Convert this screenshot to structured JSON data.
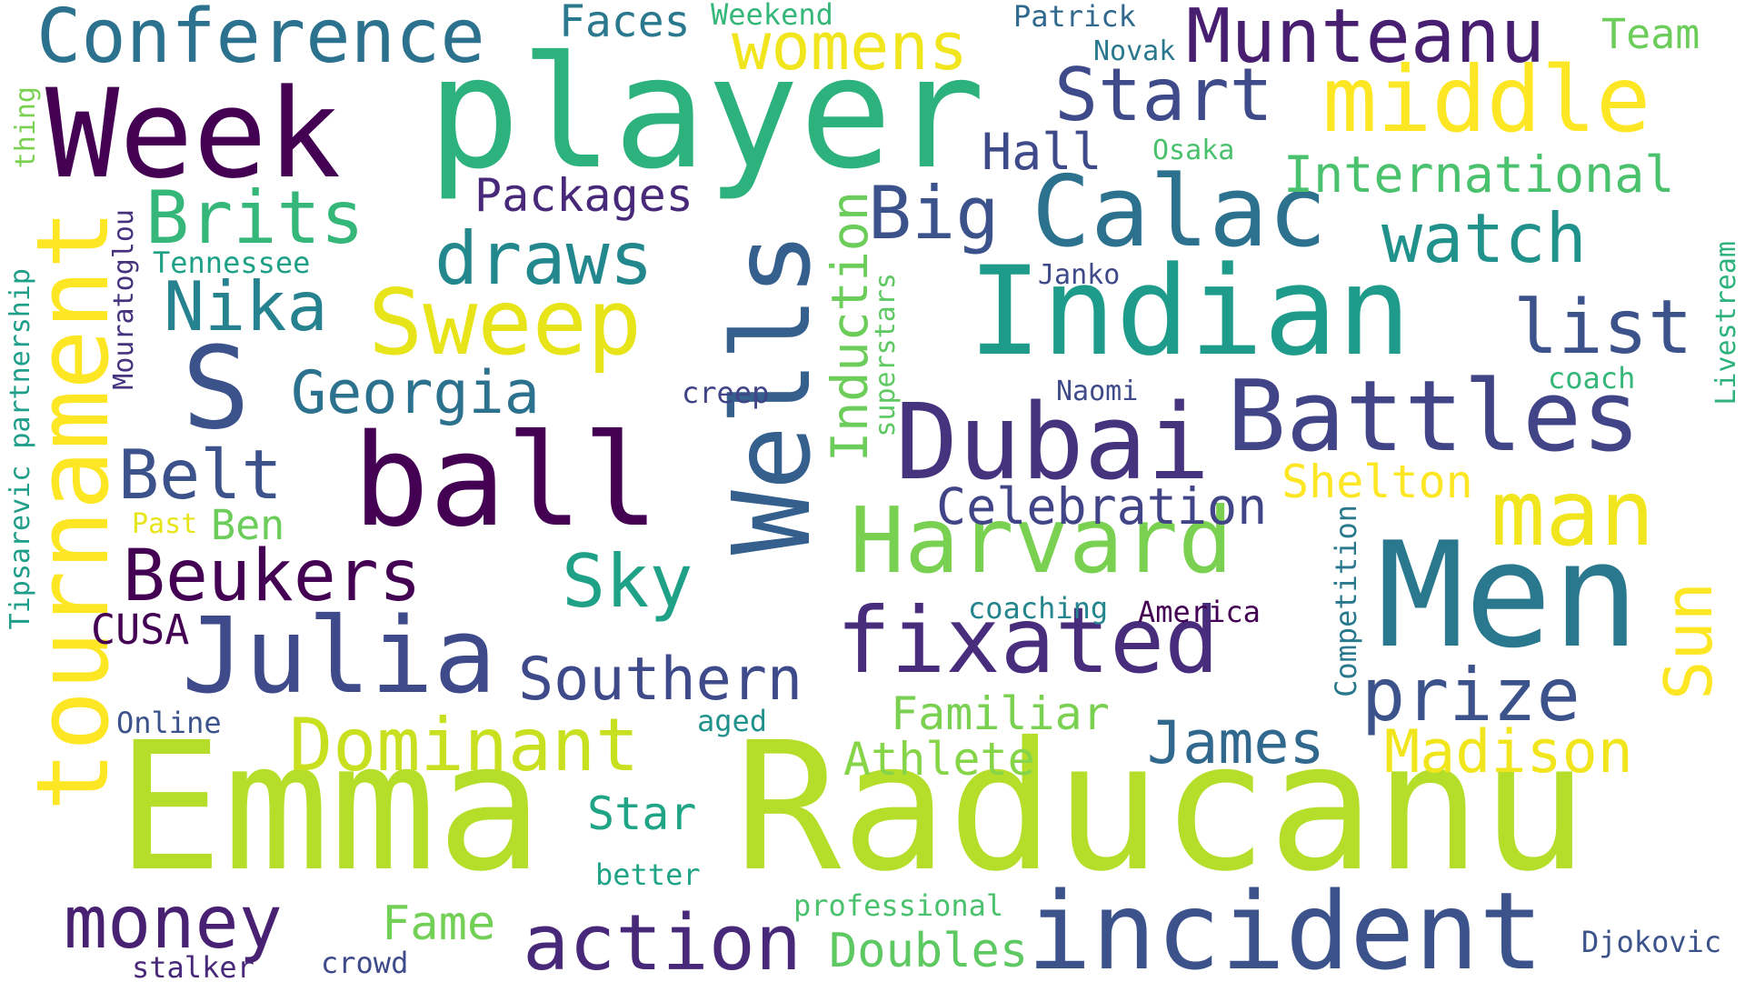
{
  "words": {
    "emma": {
      "text": "Emma",
      "color": "#b5de2b"
    },
    "raducanu": {
      "text": "Raducanu",
      "color": "#b5de2b"
    },
    "player": {
      "text": "player",
      "color": "#2db27d"
    },
    "week": {
      "text": "Week",
      "color": "#440154"
    },
    "ball": {
      "text": "ball",
      "color": "#440154"
    },
    "indian": {
      "text": "Indian",
      "color": "#1e9b8a"
    },
    "men": {
      "text": "Men",
      "color": "#2a788e"
    },
    "wells": {
      "text": "Wells",
      "color": "#355f8d"
    },
    "incident": {
      "text": "incident",
      "color": "#3b528b"
    },
    "calac": {
      "text": "Calac",
      "color": "#2c728e"
    },
    "battles": {
      "text": "Battles",
      "color": "#414487"
    },
    "dubai": {
      "text": "Dubai",
      "color": "#46337e"
    },
    "s": {
      "text": "S",
      "color": "#3b528b"
    },
    "julia": {
      "text": "Julia",
      "color": "#3e4a89"
    },
    "tournament": {
      "text": "tournament",
      "color": "#fde725"
    },
    "harvard": {
      "text": "Harvard",
      "color": "#7ad151"
    },
    "fixated": {
      "text": "fixated",
      "color": "#472d7b"
    },
    "middle": {
      "text": "middle",
      "color": "#fde725"
    },
    "man": {
      "text": "man",
      "color": "#f1e51d"
    },
    "sweep": {
      "text": "Sweep",
      "color": "#e7e419"
    },
    "action": {
      "text": "action",
      "color": "#482878"
    },
    "conference": {
      "text": "Conference",
      "color": "#2c728e"
    },
    "money": {
      "text": "money",
      "color": "#482173"
    },
    "munteanu": {
      "text": "Munteanu",
      "color": "#481f70"
    },
    "dominant": {
      "text": "Dominant",
      "color": "#c8e020"
    },
    "brits": {
      "text": "Brits",
      "color": "#35b779"
    },
    "draws": {
      "text": "draws",
      "color": "#23888e"
    },
    "beukers": {
      "text": "Beukers",
      "color": "#440154"
    },
    "prize": {
      "text": "prize",
      "color": "#3b528b"
    },
    "sun": {
      "text": "Sun",
      "color": "#fde725"
    },
    "big": {
      "text": "Big",
      "color": "#3b528b"
    },
    "watch": {
      "text": "watch",
      "color": "#21918c"
    },
    "start": {
      "text": "Start",
      "color": "#3e4a89"
    },
    "list": {
      "text": "list",
      "color": "#3b528b"
    },
    "womens": {
      "text": "womens",
      "color": "#f1e51d"
    },
    "nika": {
      "text": "Nika",
      "color": "#26828e"
    },
    "belt": {
      "text": "Belt",
      "color": "#3b528b"
    },
    "sky": {
      "text": "Sky",
      "color": "#1fa187"
    },
    "southern": {
      "text": "Southern",
      "color": "#3e4a89"
    },
    "georgia": {
      "text": "Georgia",
      "color": "#2c728e"
    },
    "james": {
      "text": "James",
      "color": "#31688e"
    },
    "madison": {
      "text": "Madison",
      "color": "#f1e51d"
    },
    "celebration": {
      "text": "Celebration",
      "color": "#414487"
    },
    "induction": {
      "text": "Induction",
      "color": "#6ccd5a"
    },
    "international": {
      "text": "International",
      "color": "#4ac16d"
    },
    "hall": {
      "text": "Hall",
      "color": "#3e4a89"
    },
    "packages": {
      "text": "Packages",
      "color": "#482878"
    },
    "familiar": {
      "text": "Familiar",
      "color": "#7ad151"
    },
    "athlete": {
      "text": "Athlete",
      "color": "#86d549"
    },
    "star": {
      "text": "Star",
      "color": "#20a486"
    },
    "fame": {
      "text": "Fame",
      "color": "#73d056"
    },
    "doubles": {
      "text": "Doubles",
      "color": "#5ec962"
    },
    "shelton": {
      "text": "Shelton",
      "color": "#fde725"
    },
    "faces": {
      "text": "Faces",
      "color": "#2a788e"
    },
    "team": {
      "text": "Team",
      "color": "#6ccd5a"
    },
    "cusa": {
      "text": "CUSA",
      "color": "#440154"
    },
    "ben": {
      "text": "Ben",
      "color": "#6ccd5a"
    },
    "competition": {
      "text": "Competition",
      "color": "#2a788e"
    },
    "livestream": {
      "text": "Livestream",
      "color": "#2db27d"
    },
    "tipsarevic": {
      "text": "Tipsarevic partnership",
      "color": "#1f9e89"
    },
    "mouratoglou": {
      "text": "Mouratoglou",
      "color": "#46337e"
    },
    "superstars": {
      "text": "superstars",
      "color": "#5ec962"
    },
    "thing": {
      "text": "thing",
      "color": "#7ad151"
    },
    "coaching": {
      "text": "coaching",
      "color": "#25858e"
    },
    "america": {
      "text": "America",
      "color": "#440154"
    },
    "djokovic": {
      "text": "Djokovic",
      "color": "#3b528b"
    },
    "professional": {
      "text": "professional",
      "color": "#4ac16d"
    },
    "aged": {
      "text": "aged",
      "color": "#21918c"
    },
    "online": {
      "text": "Online",
      "color": "#3b528b"
    },
    "better": {
      "text": "better",
      "color": "#20a486"
    },
    "crowd": {
      "text": "crowd",
      "color": "#3e4a89"
    },
    "stalker": {
      "text": "stalker",
      "color": "#482878"
    },
    "past": {
      "text": "Past",
      "color": "#e7e419"
    },
    "tennessee": {
      "text": "Tennessee",
      "color": "#1fa187"
    },
    "creep": {
      "text": "creep",
      "color": "#414487"
    },
    "naomi": {
      "text": "Naomi",
      "color": "#3e4a89"
    },
    "coach": {
      "text": "coach",
      "color": "#35b779"
    },
    "janko": {
      "text": "Janko",
      "color": "#3e4a89"
    },
    "osaka": {
      "text": "Osaka",
      "color": "#4ac16d"
    },
    "novak": {
      "text": "Novak",
      "color": "#2a788e"
    },
    "patrick": {
      "text": "Patrick",
      "color": "#31688e"
    },
    "weekend": {
      "text": "Weekend",
      "color": "#35b779"
    }
  }
}
